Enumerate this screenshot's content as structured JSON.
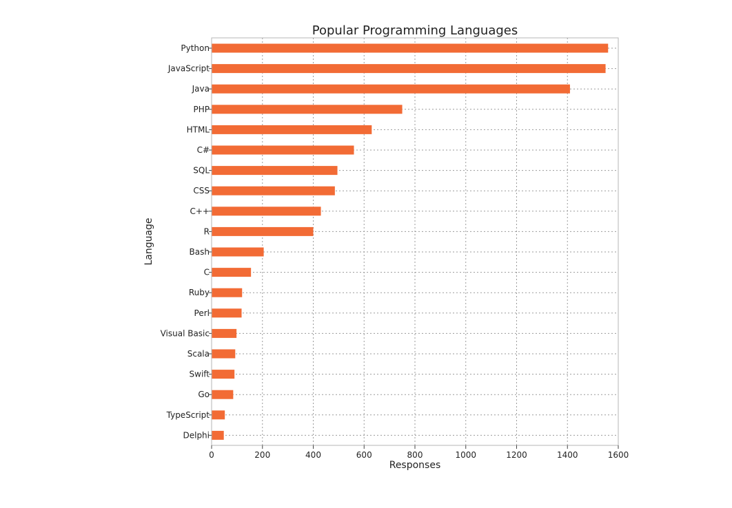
{
  "chart_data": {
    "type": "bar",
    "orientation": "horizontal",
    "title": "Popular Programming Languages",
    "xlabel": "Responses",
    "ylabel": "Language",
    "categories": [
      "Python",
      "JavaScript",
      "Java",
      "PHP",
      "HTML",
      "C#",
      "SQL",
      "CSS",
      "C++",
      "R",
      "Bash",
      "C",
      "Ruby",
      "Perl",
      "Visual Basic",
      "Scala",
      "Swift",
      "Go",
      "TypeScript",
      "Delphi"
    ],
    "values": [
      1560,
      1550,
      1410,
      750,
      630,
      560,
      495,
      485,
      430,
      400,
      205,
      155,
      120,
      118,
      98,
      93,
      90,
      85,
      52,
      48
    ],
    "xlim": [
      0,
      1600
    ],
    "xticks": [
      0,
      200,
      400,
      600,
      800,
      1000,
      1200,
      1400,
      1600
    ],
    "grid": true,
    "bar_color": "#f26b35"
  }
}
